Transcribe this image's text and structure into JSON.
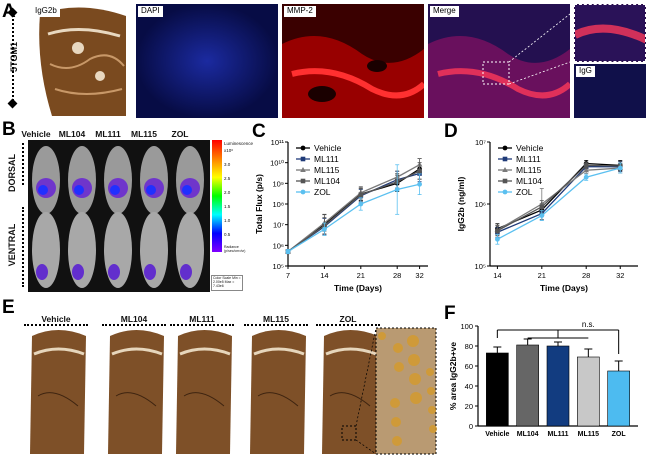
{
  "panels": {
    "a": {
      "label": "A",
      "row_label": "5TGM1",
      "tiles": [
        "IgG2b",
        "DAPI",
        "MMP-2",
        "Merge"
      ],
      "inset_label": "IgG"
    },
    "b": {
      "label": "B",
      "groups": [
        "Vehicle",
        "ML104",
        "ML111",
        "ML115",
        "ZOL"
      ],
      "views": [
        "DORSAL",
        "VENTRAL"
      ],
      "scale_title": "Luminescence",
      "scale_ticks": [
        "x10⁶",
        "3.0",
        "2.5",
        "2.0",
        "1.5",
        "1.0",
        "0.5"
      ],
      "scale_unit": "Radiance (p/sec/cm²/sr)",
      "scale_note": "Color Scale Min = 2.00e5 Max = 7.43e6"
    },
    "c": {
      "label": "C"
    },
    "d": {
      "label": "D"
    },
    "e": {
      "label": "E",
      "groups": [
        "Vehicle",
        "ML104",
        "ML111",
        "ML115",
        "ZOL"
      ]
    },
    "f": {
      "label": "F",
      "annotation": "n.s."
    }
  },
  "colors": {
    "vehicle": "#000000",
    "ml104": "#555555",
    "ml111": "#1f3a78",
    "ml115": "#7a7a7a",
    "zol": "#5bc0f0",
    "bar_vehicle": "#000000",
    "bar_ml104": "#666666",
    "bar_ml111": "#123c80",
    "bar_ml115": "#c8c8c8",
    "bar_zol": "#4dbbf0"
  },
  "chart_data": [
    {
      "id": "c",
      "type": "line",
      "xlabel": "Time (Days)",
      "ylabel": "Total Flux (p/s)",
      "x": [
        7,
        14,
        21,
        28,
        32
      ],
      "y_scale": "log",
      "ylim": [
        100000,
        100000000000
      ],
      "y_ticks": [
        "10⁵",
        "10⁶",
        "10⁷",
        "10⁸",
        "10⁹",
        "10¹⁰",
        "10¹¹"
      ],
      "legend": "top-left",
      "series": [
        {
          "name": "Vehicle",
          "values": [
            500000,
            10000000,
            300000000,
            1000000000,
            5000000000
          ],
          "err": [
            0.1,
            0.5,
            0.3,
            0.4,
            0.5
          ]
        },
        {
          "name": "ML111",
          "values": [
            500000,
            8000000,
            250000000,
            1500000000,
            3000000000
          ],
          "err": [
            0.1,
            0.4,
            0.3,
            0.4,
            0.4
          ]
        },
        {
          "name": "ML115",
          "values": [
            500000,
            12000000,
            350000000,
            2000000000,
            8000000000
          ],
          "err": [
            0.1,
            0.4,
            0.3,
            0.3,
            0.3
          ]
        },
        {
          "name": "ML104",
          "values": [
            500000,
            9000000,
            280000000,
            1200000000,
            4000000000
          ],
          "err": [
            0.1,
            0.4,
            0.3,
            0.4,
            0.4
          ]
        },
        {
          "name": "ZOL",
          "values": [
            500000,
            6000000,
            100000000,
            500000000,
            900000000
          ],
          "err": [
            0.1,
            0.3,
            0.3,
            1.2,
            0.5
          ]
        }
      ]
    },
    {
      "id": "d",
      "type": "line",
      "xlabel": "Time (Days)",
      "ylabel": "IgG2b (ng/ml)",
      "x": [
        14,
        21,
        28,
        32
      ],
      "y_scale": "log",
      "ylim": [
        100000,
        10000000
      ],
      "y_ticks": [
        "10⁵",
        "10⁶",
        "10⁷"
      ],
      "legend": "top-left",
      "series": [
        {
          "name": "Vehicle",
          "values": [
            400000,
            800000,
            4500000,
            4200000
          ],
          "err": [
            0.08,
            0.1,
            0.05,
            0.08
          ]
        },
        {
          "name": "ML111",
          "values": [
            350000,
            700000,
            4000000,
            4000000
          ],
          "err": [
            0.08,
            0.1,
            0.05,
            0.08
          ]
        },
        {
          "name": "ML115",
          "values": [
            380000,
            1000000,
            3500000,
            3800000
          ],
          "err": [
            0.08,
            0.25,
            0.05,
            0.08
          ]
        },
        {
          "name": "ML104",
          "values": [
            370000,
            900000,
            4200000,
            4100000
          ],
          "err": [
            0.08,
            0.1,
            0.05,
            0.08
          ]
        },
        {
          "name": "ZOL",
          "values": [
            270000,
            650000,
            2700000,
            3800000
          ],
          "err": [
            0.08,
            0.08,
            0.05,
            0.08
          ]
        }
      ]
    },
    {
      "id": "f",
      "type": "bar",
      "ylabel": "% area IgG2b+ve",
      "categories": [
        "Vehicle",
        "ML104",
        "ML111",
        "ML115",
        "ZOL"
      ],
      "values": [
        73,
        81,
        80,
        69,
        55
      ],
      "err": [
        6,
        6,
        4,
        8,
        10
      ],
      "ylim": [
        0,
        100
      ],
      "y_ticks": [
        "0",
        "20",
        "40",
        "60",
        "80",
        "100"
      ]
    }
  ]
}
